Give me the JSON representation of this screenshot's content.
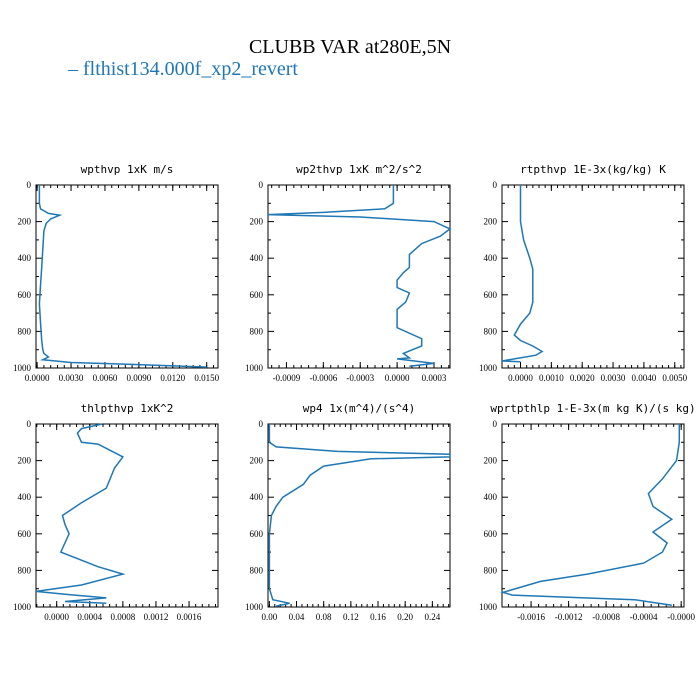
{
  "title": "CLUBB VAR at280E,5N",
  "legend": {
    "label": "– flthist134.000f_xp2_revert",
    "color": "#1f77b4"
  },
  "chart_data": [
    {
      "type": "line",
      "title": "wpthvp   1xK m/s",
      "xlim": [
        -0.0001,
        0.016
      ],
      "ylim": [
        0,
        1000
      ],
      "y_reversed": true,
      "xticks": [
        0.0,
        0.003,
        0.006,
        0.009,
        0.012,
        0.015
      ],
      "xtick_labels": [
        "0.0000",
        "0.0030",
        "0.0060",
        "0.0090",
        "0.0120",
        "0.0150"
      ],
      "yticks": [
        0,
        200,
        400,
        600,
        800,
        1000
      ],
      "ytick_labels": [
        "0",
        "200",
        "400",
        "600",
        "800",
        "1000"
      ],
      "series": [
        {
          "color": "#1f77b4",
          "points": [
            [
              0.0002,
              0
            ],
            [
              0.0002,
              100
            ],
            [
              0.0003,
              130
            ],
            [
              0.001,
              155
            ],
            [
              0.002,
              165
            ],
            [
              0.0012,
              185
            ],
            [
              0.0008,
              210
            ],
            [
              0.0006,
              250
            ],
            [
              0.0005,
              350
            ],
            [
              0.0004,
              450
            ],
            [
              0.0003,
              550
            ],
            [
              0.0002,
              650
            ],
            [
              0.0003,
              750
            ],
            [
              0.0004,
              850
            ],
            [
              0.0005,
              900
            ],
            [
              0.0006,
              920
            ],
            [
              0.001,
              940
            ],
            [
              0.0005,
              955
            ],
            [
              0.003,
              970
            ],
            [
              0.008,
              980
            ],
            [
              0.013,
              990
            ],
            [
              0.015,
              995
            ]
          ]
        }
      ]
    },
    {
      "type": "line",
      "title": "wp2thvp   1xK m^2/s^2",
      "xlim": [
        -0.00105,
        0.00043
      ],
      "ylim": [
        0,
        1000
      ],
      "y_reversed": true,
      "xticks": [
        -0.0009,
        -0.0006,
        -0.0003,
        0.0,
        0.0003
      ],
      "xtick_labels": [
        "-0.0009",
        "-0.0006",
        "-0.0003",
        "0.0000",
        "0.0003"
      ],
      "yticks": [
        0,
        200,
        400,
        600,
        800,
        1000
      ],
      "ytick_labels": [
        "0",
        "200",
        "400",
        "600",
        "800",
        "1000"
      ],
      "series": [
        {
          "color": "#1f77b4",
          "points": [
            [
              -3e-05,
              0
            ],
            [
              -3e-05,
              100
            ],
            [
              -0.0001,
              130
            ],
            [
              -0.0006,
              150
            ],
            [
              -0.00105,
              162
            ],
            [
              -0.0003,
              175
            ],
            [
              0.0003,
              200
            ],
            [
              0.00043,
              240
            ],
            [
              0.00035,
              280
            ],
            [
              0.0002,
              320
            ],
            [
              0.0001,
              380
            ],
            [
              0.0001,
              450
            ],
            [
              5e-05,
              480
            ],
            [
              0.0,
              520
            ],
            [
              0.0,
              560
            ],
            [
              0.0001,
              590
            ],
            [
              7e-05,
              640
            ],
            [
              0.0,
              680
            ],
            [
              0.0,
              780
            ],
            [
              0.0002,
              840
            ],
            [
              0.0002,
              880
            ],
            [
              5e-05,
              920
            ],
            [
              0.0001,
              945
            ],
            [
              0.0,
              950
            ],
            [
              0.0003,
              975
            ],
            [
              0.0001,
              990
            ]
          ]
        }
      ]
    },
    {
      "type": "line",
      "title": "rtpthvp   1E-3x(kg/kg) K",
      "xlim": [
        -0.0006,
        0.0053
      ],
      "ylim": [
        0,
        1000
      ],
      "y_reversed": true,
      "xticks": [
        0.0,
        0.001,
        0.002,
        0.003,
        0.004,
        0.005
      ],
      "xtick_labels": [
        "0.0000",
        "0.0010",
        "0.0020",
        "0.0030",
        "0.0040",
        "0.0050"
      ],
      "yticks": [
        0,
        200,
        400,
        600,
        800,
        1000
      ],
      "ytick_labels": [
        "0",
        "200",
        "400",
        "600",
        "800",
        "1000"
      ],
      "series": [
        {
          "color": "#1f77b4",
          "points": [
            [
              0.0,
              0
            ],
            [
              0.0,
              100
            ],
            [
              0.0,
              200
            ],
            [
              0.0001,
              300
            ],
            [
              0.0003,
              400
            ],
            [
              0.0004,
              460
            ],
            [
              0.0004,
              550
            ],
            [
              0.0004,
              640
            ],
            [
              0.0003,
              700
            ],
            [
              0.0,
              760
            ],
            [
              -0.0002,
              820
            ],
            [
              0.0,
              850
            ],
            [
              0.0004,
              880
            ],
            [
              0.0007,
              910
            ],
            [
              0.0005,
              930
            ],
            [
              -0.0002,
              950
            ],
            [
              -0.0006,
              962
            ],
            [
              0.0,
              966
            ]
          ]
        }
      ]
    },
    {
      "type": "line",
      "title": "thlpthvp   1xK^2",
      "xlim": [
        -0.00025,
        0.00195
      ],
      "ylim": [
        0,
        1000
      ],
      "y_reversed": true,
      "xticks": [
        0.0,
        0.0004,
        0.0008,
        0.0012,
        0.0016
      ],
      "xtick_labels": [
        "0.0000",
        "0.0004",
        "0.0008",
        "0.0012",
        "0.0016"
      ],
      "yticks": [
        0,
        200,
        400,
        600,
        800,
        1000
      ],
      "ytick_labels": [
        "0",
        "200",
        "400",
        "600",
        "800",
        "1000"
      ],
      "series": [
        {
          "color": "#1f77b4",
          "points": [
            [
              0.00055,
              0
            ],
            [
              0.0003,
              25
            ],
            [
              0.00025,
              50
            ],
            [
              0.0003,
              100
            ],
            [
              0.0005,
              110
            ],
            [
              0.0008,
              180
            ],
            [
              0.0007,
              240
            ],
            [
              0.0006,
              350
            ],
            [
              0.0003,
              430
            ],
            [
              7e-05,
              500
            ],
            [
              0.0001,
              550
            ],
            [
              0.00015,
              600
            ],
            [
              5e-05,
              700
            ],
            [
              0.0005,
              780
            ],
            [
              0.0008,
              820
            ],
            [
              0.0003,
              880
            ],
            [
              -0.00025,
              915
            ],
            [
              0.0001,
              930
            ],
            [
              0.0006,
              950
            ],
            [
              0.0001,
              970
            ],
            [
              0.0006,
              980
            ]
          ]
        }
      ]
    },
    {
      "type": "line",
      "title": "wp4   1x(m^4)/(s^4)",
      "xlim": [
        -0.002,
        0.266
      ],
      "ylim": [
        0,
        1000
      ],
      "y_reversed": true,
      "xticks": [
        0.0,
        0.04,
        0.08,
        0.12,
        0.16,
        0.2,
        0.24
      ],
      "xtick_labels": [
        "0.00",
        "0.04",
        "0.08",
        "0.12",
        "0.16",
        "0.20",
        "0.24"
      ],
      "yticks": [
        0,
        200,
        400,
        600,
        800,
        1000
      ],
      "ytick_labels": [
        "0",
        "200",
        "400",
        "600",
        "800",
        "1000"
      ],
      "series": [
        {
          "color": "#1f77b4",
          "points": [
            [
              0.0,
              0
            ],
            [
              0.0,
              100
            ],
            [
              0.01,
              125
            ],
            [
              0.1,
              150
            ],
            [
              0.266,
              165
            ],
            [
              0.266,
              180
            ],
            [
              0.15,
              190
            ],
            [
              0.08,
              230
            ],
            [
              0.06,
              280
            ],
            [
              0.05,
              330
            ],
            [
              0.02,
              400
            ],
            [
              0.01,
              450
            ],
            [
              0.003,
              500
            ],
            [
              0.0,
              600
            ],
            [
              0.0,
              900
            ],
            [
              0.005,
              960
            ],
            [
              0.03,
              980
            ],
            [
              0.01,
              995
            ]
          ]
        }
      ]
    },
    {
      "type": "line",
      "title": "wprtpthlp   1-E-3x(m kg K)/(s kg)",
      "xlim": [
        -0.00191,
        3e-05
      ],
      "ylim": [
        0,
        1000
      ],
      "y_reversed": true,
      "xticks": [
        -0.0016,
        -0.0012,
        -0.0008,
        -0.0004,
        0.0
      ],
      "xtick_labels": [
        "-0.0016",
        "-0.0012",
        "-0.0008",
        "-0.0004",
        "-0.0000"
      ],
      "yticks": [
        0,
        200,
        400,
        600,
        800,
        1000
      ],
      "ytick_labels": [
        "0",
        "200",
        "400",
        "600",
        "800",
        "1000"
      ],
      "series": [
        {
          "color": "#1f77b4",
          "points": [
            [
              -2e-05,
              0
            ],
            [
              -2e-05,
              100
            ],
            [
              -5e-05,
              200
            ],
            [
              -0.0002,
              300
            ],
            [
              -0.00035,
              380
            ],
            [
              -0.0003,
              450
            ],
            [
              -0.0001,
              520
            ],
            [
              -0.0003,
              590
            ],
            [
              -0.00015,
              650
            ],
            [
              -0.0002,
              700
            ],
            [
              -0.0004,
              760
            ],
            [
              -0.001,
              820
            ],
            [
              -0.0015,
              860
            ],
            [
              -0.0019,
              920
            ],
            [
              -0.0018,
              935
            ],
            [
              -0.0005,
              960
            ],
            [
              -0.0001,
              990
            ]
          ]
        }
      ]
    }
  ]
}
